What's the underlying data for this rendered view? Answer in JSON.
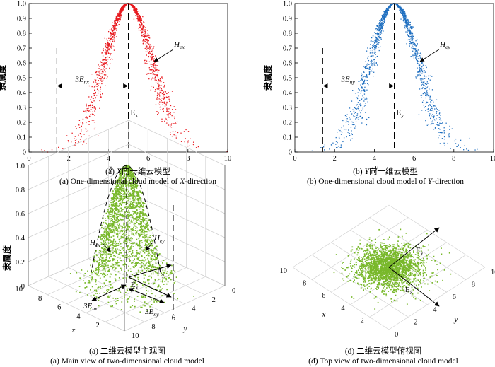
{
  "colors": {
    "x_direction": "#e8191e",
    "y_direction": "#1f6fc0",
    "two_dimensional": "#78b82a"
  },
  "captions": {
    "a_zh_prefix": "(a) ",
    "a_zh_var": "X",
    "a_zh_text": "向一维云模型",
    "a_en_text": "(a) One-dimensional cloud model of ",
    "a_en_var": "X",
    "a_en_suffix": "-direction",
    "b_zh_prefix": "(b) ",
    "b_zh_var": "Y",
    "b_zh_text": "向一维云模型",
    "b_en_text": "(b) One-dimensional cloud model of ",
    "b_en_var": "Y",
    "b_en_suffix": "-direction",
    "c_zh": "(a) 二维云模型主观图",
    "c_en": "(a) Main view of two-dimensional cloud model",
    "d_zh": "(d) 二维云模型俯视图",
    "d_en": "(d) Top view of two-dimensional cloud model"
  },
  "chart_data": [
    {
      "id": "a",
      "type": "scatter",
      "description": "X-direction one-dimensional normal cloud drops",
      "xlabel": "x",
      "ylabel": "隶属度",
      "xlim": [
        0,
        10
      ],
      "ylim": [
        0,
        1
      ],
      "xticks": [
        "0",
        "2",
        "4",
        "6",
        "8",
        "10"
      ],
      "yticks": [
        "0",
        "0.1",
        "0.2",
        "0.3",
        "0.4",
        "0.5",
        "0.6",
        "0.7",
        "0.8",
        "0.9",
        "1.0"
      ],
      "Ex": 5,
      "En": 1.2,
      "He": 0.15,
      "n_points": 1500,
      "annotations": {
        "expectation": "E",
        "expectation_sub": "x",
        "three_en": "3E",
        "three_en_sub": "nx",
        "hyper": "H",
        "hyper_sub": "ex"
      }
    },
    {
      "id": "b",
      "type": "scatter",
      "description": "Y-direction one-dimensional normal cloud drops",
      "xlabel": "y",
      "ylabel": "隶属度",
      "xlim": [
        0,
        10
      ],
      "ylim": [
        0,
        1
      ],
      "xticks": [
        "0",
        "2",
        "4",
        "6",
        "8",
        "10"
      ],
      "yticks": [
        "0",
        "0.1",
        "0.2",
        "0.3",
        "0.4",
        "0.5",
        "0.6",
        "0.7",
        "0.8",
        "0.9",
        "1.0"
      ],
      "Ex": 5,
      "En": 1.2,
      "He": 0.15,
      "n_points": 1500,
      "annotations": {
        "expectation": "E",
        "expectation_sub": "y",
        "three_en": "3E",
        "three_en_sub": "ny",
        "hyper": "H",
        "hyper_sub": "ey"
      }
    },
    {
      "id": "c",
      "type": "scatter",
      "description": "Two-dimensional cloud model, 3D main view",
      "zlabel": "隶属度",
      "xlabel": "x",
      "ylabel": "y",
      "zlim": [
        0,
        1
      ],
      "zticks": [
        "0",
        "0.2",
        "0.4",
        "0.6",
        "0.8",
        "1.0"
      ],
      "xticks": [
        "10",
        "8",
        "6",
        "4",
        "2"
      ],
      "yticks": [
        "0",
        "2",
        "4",
        "6",
        "8",
        "10"
      ],
      "Ex": 5,
      "Ey": 5,
      "En": 1.2,
      "He": 0.15,
      "n_points": 2200,
      "annotations": {
        "hx": "H",
        "hx_sub": "ex",
        "hy": "H",
        "hy_sub": "ey",
        "ey": "E",
        "ey_sub": "y",
        "ex": "E",
        "ex_sub": "x",
        "nx": "3E",
        "nx_sub": "nx",
        "ny": "3E",
        "ny_sub": "ny"
      }
    },
    {
      "id": "d",
      "type": "scatter",
      "description": "Two-dimensional cloud model, top view",
      "xlabel": "x",
      "ylabel": "y",
      "xticks": [
        "10",
        "8",
        "6",
        "4",
        "2"
      ],
      "yticks": [
        "0",
        "2",
        "4",
        "6",
        "8",
        "10"
      ],
      "Ex": 5,
      "Ey": 5,
      "En": 1.2,
      "He": 0.15,
      "n_points": 2200,
      "annotations": {
        "ey": "E",
        "ey_sub": "y",
        "ex": "E",
        "ex_sub": "x"
      }
    }
  ]
}
